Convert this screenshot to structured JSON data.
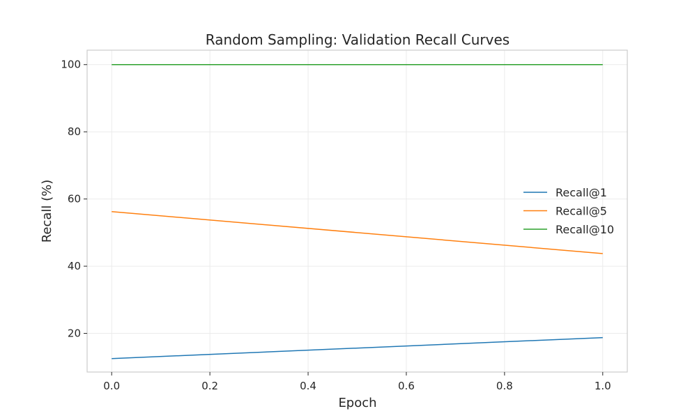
{
  "chart_data": {
    "type": "line",
    "title": "Random Sampling: Validation Recall Curves",
    "xlabel": "Epoch",
    "ylabel": "Recall (%)",
    "x": [
      0.0,
      1.0
    ],
    "xlim": [
      -0.05,
      1.05
    ],
    "ylim": [
      8.5,
      104.3
    ],
    "xticks": [
      0.0,
      0.2,
      0.4,
      0.6,
      0.8,
      1.0
    ],
    "xtick_labels": [
      "0.0",
      "0.2",
      "0.4",
      "0.6",
      "0.8",
      "1.0"
    ],
    "yticks": [
      20,
      40,
      60,
      80,
      100
    ],
    "ytick_labels": [
      "20",
      "40",
      "60",
      "80",
      "100"
    ],
    "grid": true,
    "legend_position": "center-right",
    "series": [
      {
        "name": "Recall@1",
        "color": "#1f77b4",
        "values": [
          12.5,
          18.75
        ]
      },
      {
        "name": "Recall@5",
        "color": "#ff7f0e",
        "values": [
          56.25,
          43.75
        ]
      },
      {
        "name": "Recall@10",
        "color": "#2ca02c",
        "values": [
          100.0,
          100.0
        ]
      }
    ]
  }
}
